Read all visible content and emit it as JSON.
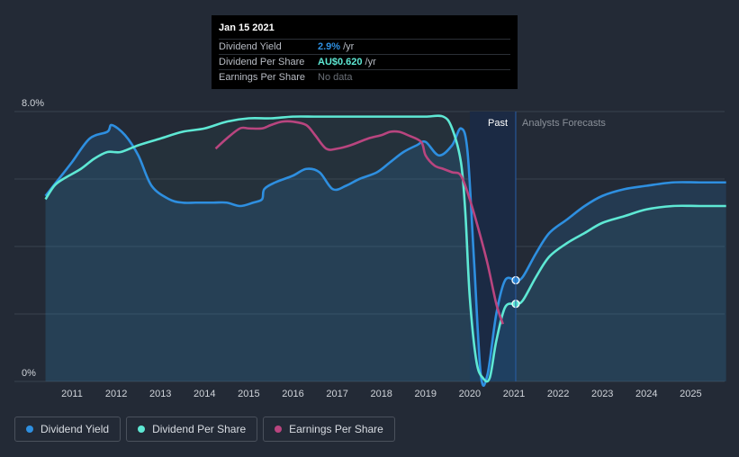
{
  "chart_data": {
    "type": "line",
    "y_axis": {
      "ticks": [
        "8.0%",
        "0%"
      ],
      "ylim": [
        0,
        8
      ]
    },
    "x_axis": {
      "ticks": [
        "2011",
        "2012",
        "2013",
        "2014",
        "2015",
        "2016",
        "2017",
        "2018",
        "2019",
        "2020",
        "2021",
        "2022",
        "2023",
        "2024",
        "2025"
      ]
    },
    "regions": {
      "past_label": "Past",
      "forecast_label": "Analysts Forecasts"
    },
    "colors": {
      "dividend_yield": "#2e8fe0",
      "dividend_per_share": "#5ee8d4",
      "earnings_per_share": "#b9457f"
    },
    "series": [
      {
        "name": "Dividend Yield",
        "color_key": "dividend_yield",
        "x": [
          2010.4,
          2010.7,
          2011.0,
          2011.4,
          2011.8,
          2011.9,
          2012.2,
          2012.5,
          2012.8,
          2013.2,
          2013.5,
          2013.8,
          2014.2,
          2014.5,
          2014.8,
          2015.1,
          2015.3,
          2015.35,
          2015.6,
          2016.0,
          2016.3,
          2016.6,
          2016.9,
          2017.2,
          2017.5,
          2017.9,
          2018.2,
          2018.5,
          2018.8,
          2019.0,
          2019.3,
          2019.6,
          2019.8,
          2019.95,
          2020.1,
          2020.25,
          2020.4,
          2020.6,
          2020.8,
          2021.04,
          2021.2,
          2021.5,
          2021.8,
          2022.2,
          2022.6,
          2023.0,
          2023.5,
          2024.0,
          2024.6,
          2025.2,
          2025.8
        ],
        "y": [
          5.5,
          6.0,
          6.5,
          7.2,
          7.4,
          7.6,
          7.3,
          6.7,
          5.8,
          5.4,
          5.3,
          5.3,
          5.3,
          5.3,
          5.2,
          5.3,
          5.4,
          5.7,
          5.9,
          6.1,
          6.3,
          6.2,
          5.7,
          5.8,
          6.0,
          6.2,
          6.5,
          6.8,
          7.0,
          7.1,
          6.7,
          7.0,
          7.5,
          6.8,
          3.5,
          0.2,
          0.2,
          2.0,
          3.0,
          3.0,
          3.1,
          3.8,
          4.4,
          4.8,
          5.2,
          5.5,
          5.7,
          5.8,
          5.9,
          5.9,
          5.9
        ]
      },
      {
        "name": "Dividend Per Share",
        "color_key": "dividend_per_share",
        "x": [
          2010.4,
          2010.6,
          2010.8,
          2011.2,
          2011.5,
          2011.8,
          2012.1,
          2012.5,
          2013.0,
          2013.5,
          2014.0,
          2014.5,
          2015.0,
          2015.5,
          2016.0,
          2016.5,
          2017.0,
          2017.5,
          2018.0,
          2018.5,
          2019.0,
          2019.4,
          2019.6,
          2019.8,
          2019.9,
          2020.0,
          2020.15,
          2020.3,
          2020.45,
          2020.6,
          2020.8,
          2021.04,
          2021.2,
          2021.5,
          2021.8,
          2022.2,
          2022.6,
          2023.0,
          2023.5,
          2024.0,
          2024.6,
          2025.2,
          2025.8
        ],
        "y": [
          5.4,
          5.8,
          6.0,
          6.3,
          6.6,
          6.8,
          6.8,
          7.0,
          7.2,
          7.4,
          7.5,
          7.7,
          7.8,
          7.8,
          7.85,
          7.85,
          7.85,
          7.85,
          7.85,
          7.85,
          7.85,
          7.85,
          7.5,
          6.5,
          5.0,
          2.5,
          0.6,
          0.1,
          0.1,
          1.2,
          2.2,
          2.3,
          2.4,
          3.1,
          3.7,
          4.1,
          4.4,
          4.7,
          4.9,
          5.1,
          5.2,
          5.2,
          5.2
        ]
      },
      {
        "name": "Earnings Per Share",
        "color_key": "earnings_per_share",
        "x": [
          2014.25,
          2014.5,
          2014.8,
          2015.0,
          2015.3,
          2015.5,
          2015.75,
          2016.0,
          2016.3,
          2016.5,
          2016.75,
          2017.0,
          2017.3,
          2017.7,
          2018.0,
          2018.2,
          2018.4,
          2018.6,
          2018.9,
          2019.0,
          2019.2,
          2019.4,
          2019.6,
          2019.8,
          2020.0,
          2020.2,
          2020.4,
          2020.6,
          2020.75
        ],
        "y": [
          6.9,
          7.2,
          7.5,
          7.5,
          7.5,
          7.6,
          7.7,
          7.7,
          7.6,
          7.3,
          6.9,
          6.9,
          7.0,
          7.2,
          7.3,
          7.4,
          7.4,
          7.3,
          7.1,
          6.7,
          6.4,
          6.3,
          6.2,
          6.1,
          5.4,
          4.5,
          3.5,
          2.3,
          1.7
        ]
      }
    ],
    "tooltip": {
      "date": "Jan 15 2021",
      "rows": [
        {
          "label": "Dividend Yield",
          "value": "2.9%",
          "unit": "/yr"
        },
        {
          "label": "Dividend Per Share",
          "value": "AU$0.620",
          "unit": "/yr"
        },
        {
          "label": "Earnings Per Share",
          "value": "No data",
          "unit": ""
        }
      ]
    }
  },
  "legend": [
    {
      "label": "Dividend Yield",
      "color": "#2e8fe0"
    },
    {
      "label": "Dividend Per Share",
      "color": "#5ee8d4"
    },
    {
      "label": "Earnings Per Share",
      "color": "#b9457f"
    }
  ]
}
